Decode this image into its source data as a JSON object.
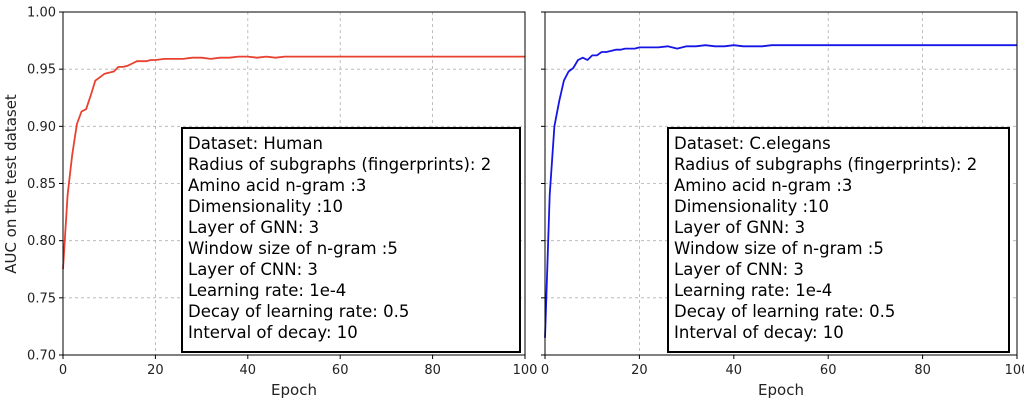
{
  "chart_data": [
    {
      "type": "line",
      "title": "",
      "xlabel": "Epoch",
      "ylabel": "AUC on the test dataset",
      "xlim": [
        0,
        100
      ],
      "ylim": [
        0.7,
        1.0
      ],
      "xticks": [
        "0",
        "20",
        "40",
        "60",
        "80",
        "100"
      ],
      "yticks": [
        "0.70",
        "0.75",
        "0.80",
        "0.85",
        "0.90",
        "0.95",
        "1.00"
      ],
      "grid": true,
      "series": [
        {
          "color": "#e8412f",
          "x": [
            0,
            1,
            2,
            3,
            4,
            5,
            6,
            7,
            8,
            9,
            10,
            11,
            12,
            13,
            14,
            15,
            16,
            17,
            18,
            19,
            20,
            22,
            24,
            26,
            28,
            30,
            32,
            34,
            36,
            38,
            40,
            42,
            44,
            46,
            48,
            50,
            55,
            60,
            65,
            70,
            75,
            80,
            85,
            90,
            95,
            100
          ],
          "y": [
            0.775,
            0.84,
            0.875,
            0.902,
            0.913,
            0.915,
            0.927,
            0.94,
            0.943,
            0.946,
            0.947,
            0.948,
            0.952,
            0.952,
            0.953,
            0.955,
            0.957,
            0.957,
            0.957,
            0.958,
            0.958,
            0.959,
            0.959,
            0.959,
            0.96,
            0.96,
            0.959,
            0.96,
            0.96,
            0.961,
            0.961,
            0.96,
            0.961,
            0.96,
            0.961,
            0.961,
            0.961,
            0.961,
            0.961,
            0.961,
            0.961,
            0.961,
            0.961,
            0.961,
            0.961,
            0.961
          ]
        }
      ],
      "info_box": [
        "Dataset: Human",
        "Radius of subgraphs (fingerprints): 2",
        "Amino acid n-gram :3",
        "Dimensionality :10",
        "Layer of GNN: 3",
        "Window size of n-gram :5",
        "Layer of CNN: 3",
        "Learning rate: 1e-4",
        "Decay of learning rate: 0.5",
        "Interval of decay: 10"
      ]
    },
    {
      "type": "line",
      "title": "",
      "xlabel": "Epoch",
      "ylabel": "",
      "xlim": [
        0,
        100
      ],
      "ylim": [
        0.7,
        1.0
      ],
      "xticks": [
        "0",
        "20",
        "40",
        "60",
        "80",
        "100"
      ],
      "yticks": [],
      "grid": true,
      "series": [
        {
          "color": "#1515e6",
          "x": [
            0,
            1,
            2,
            3,
            4,
            5,
            6,
            7,
            8,
            9,
            10,
            11,
            12,
            13,
            14,
            15,
            16,
            17,
            18,
            19,
            20,
            22,
            24,
            26,
            28,
            30,
            32,
            34,
            36,
            38,
            40,
            42,
            44,
            46,
            48,
            50,
            55,
            60,
            65,
            70,
            75,
            80,
            85,
            90,
            95,
            100
          ],
          "y": [
            0.715,
            0.84,
            0.9,
            0.922,
            0.94,
            0.948,
            0.951,
            0.958,
            0.96,
            0.958,
            0.962,
            0.962,
            0.965,
            0.965,
            0.966,
            0.967,
            0.967,
            0.968,
            0.968,
            0.968,
            0.969,
            0.969,
            0.969,
            0.97,
            0.968,
            0.97,
            0.97,
            0.971,
            0.97,
            0.97,
            0.971,
            0.97,
            0.97,
            0.97,
            0.971,
            0.971,
            0.971,
            0.971,
            0.971,
            0.971,
            0.971,
            0.971,
            0.971,
            0.971,
            0.971,
            0.971
          ]
        }
      ],
      "info_box": [
        "Dataset: C.elegans",
        "Radius of subgraphs (fingerprints): 2",
        "Amino acid n-gram :3",
        "Dimensionality :10",
        "Layer of GNN: 3",
        "Window size of n-gram :5",
        "Layer of CNN: 3",
        "Learning rate: 1e-4",
        "Decay of learning rate: 0.5",
        "Interval of decay: 10"
      ]
    }
  ]
}
